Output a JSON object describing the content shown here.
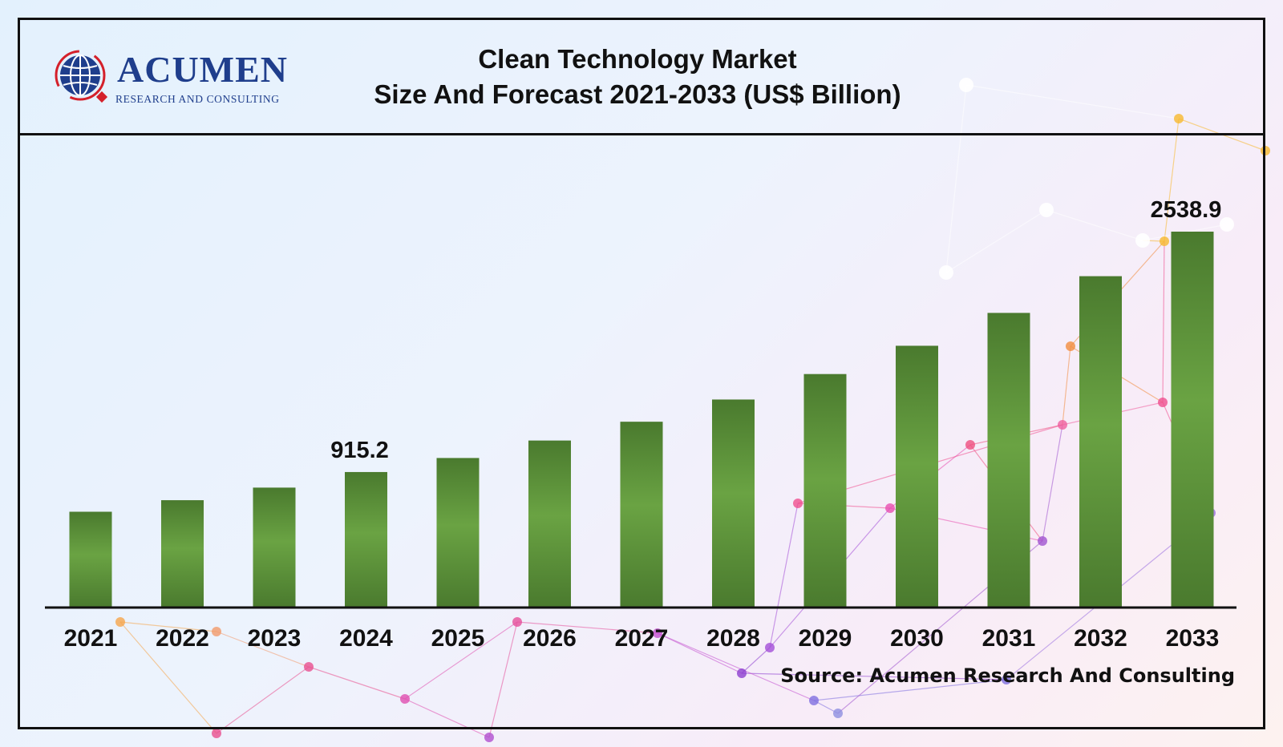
{
  "header": {
    "title_line1": "Clean Technology Market",
    "title_line2": "Size And Forecast 2021-2033 (US$ Billion)"
  },
  "logo": {
    "name": "ACUMEN",
    "tagline": "RESEARCH AND CONSULTING",
    "icon": "globe-icon",
    "color": "#1f3e8c"
  },
  "source": "Source: Acumen Research And Consulting",
  "colors": {
    "bar_dark": "#4a7a2e",
    "bar_light": "#6aa343",
    "axis": "#111111"
  },
  "chart_data": {
    "type": "bar",
    "title": "Clean Technology Market Size And Forecast 2021-2033 (US$ Billion)",
    "xlabel": "",
    "ylabel": "",
    "categories": [
      "2021",
      "2022",
      "2023",
      "2024",
      "2025",
      "2026",
      "2027",
      "2028",
      "2029",
      "2030",
      "2031",
      "2032",
      "2033"
    ],
    "values": [
      647,
      725,
      810,
      915.2,
      1010,
      1128,
      1255,
      1405,
      1577,
      1768,
      1990,
      2238,
      2538.9
    ],
    "data_labels": [
      null,
      null,
      null,
      "915.2",
      null,
      null,
      null,
      null,
      null,
      null,
      null,
      null,
      "2538.9"
    ],
    "ylim": [
      0,
      2538.9
    ],
    "grid": false,
    "legend": "none"
  }
}
